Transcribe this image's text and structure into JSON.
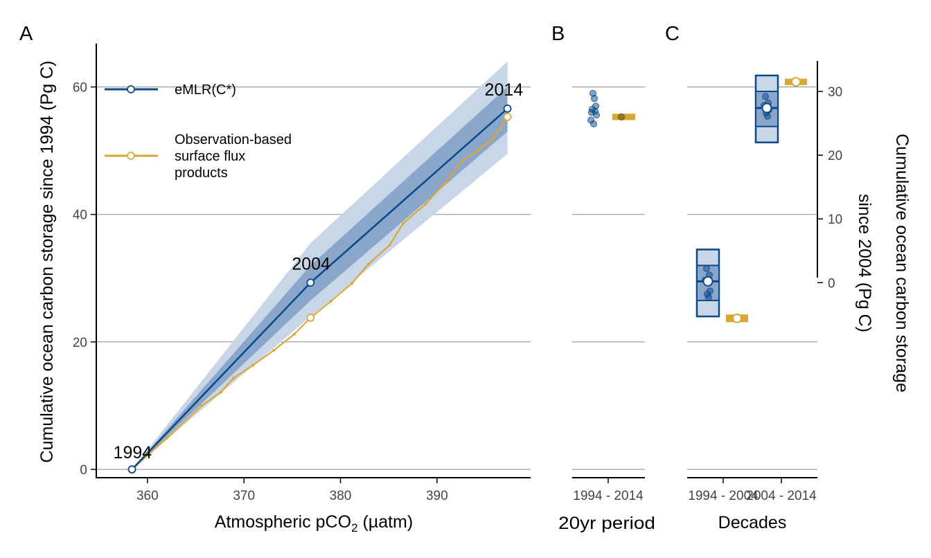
{
  "colors": {
    "emlr": "#0b4a8a",
    "obs": "#d9a734",
    "band_outer": "#c8d6e7",
    "band_inner": "#8aa7cb",
    "box_fill": "#c8d6e7",
    "box_inner": "#8aa7cb"
  },
  "chart_data": [
    {
      "panel": "A",
      "type": "line",
      "xlabel": "Atmospheric pCO",
      "xlabel_sub": "2",
      "xlabel_unit": " (µatm)",
      "ylabel": "Cumulative ocean carbon storage since 1994 (Pg C)",
      "xlim": [
        354.7,
        399.7
      ],
      "ylim": [
        -1.3,
        66.8
      ],
      "xticks": [
        360,
        370,
        380,
        390
      ],
      "yticks": [
        0,
        20,
        40,
        60
      ],
      "grid": "horizontal",
      "legend_placement": "top-left",
      "series": [
        {
          "name": "eMLR(C*)",
          "x": [
            358.4,
            376.9,
            397.3
          ],
          "y": [
            0,
            29.3,
            56.6
          ],
          "year_labels": [
            "1994",
            "2004",
            "2014"
          ]
        },
        {
          "name": "Observation-based surface flux products",
          "x": [
            358.4,
            362.0,
            365.6,
            367.6,
            368.9,
            370.9,
            373.1,
            375.2,
            376.9,
            379.0,
            381.2,
            382.9,
            385.1,
            386.5,
            388.8,
            390.8,
            392.6,
            394.0,
            395.8,
            397.3
          ],
          "y": [
            0,
            4.9,
            10.0,
            12.1,
            14.3,
            16.3,
            18.7,
            21.2,
            23.8,
            26.4,
            29.2,
            32.2,
            35.2,
            38.6,
            41.6,
            44.9,
            48.4,
            49.8,
            51.9,
            55.3
          ]
        }
      ],
      "uncertainty_outer": {
        "x": [
          358.4,
          376.9,
          397.3
        ],
        "upper": [
          0,
          35.5,
          64.0
        ],
        "lower": [
          0,
          24.0,
          49.5
        ]
      },
      "uncertainty_inner": {
        "x": [
          358.4,
          376.9,
          397.3
        ],
        "upper": [
          0,
          32.0,
          60.0
        ],
        "lower": [
          0,
          26.5,
          53.0
        ]
      }
    },
    {
      "panel": "B",
      "type": "scatter",
      "xlabel": "20yr period",
      "categories": [
        "1994 - 2014"
      ],
      "ylim": [
        -1.3,
        66.8
      ],
      "emlr_points": [
        59.0,
        58.2,
        57.0,
        56.5,
        56.2,
        56.0,
        55.6,
        54.8,
        54.2
      ],
      "obs_value": 55.3,
      "obs_range": [
        54.8,
        55.8
      ]
    },
    {
      "panel": "C",
      "type": "box",
      "xlabel": "Decades",
      "categories": [
        "1994 - 2004",
        "2004 - 2014"
      ],
      "ylim": [
        -1.3,
        66.8
      ],
      "y2label_line1": "Cumulative ocean carbon storage",
      "y2label_line2": "since 2004 (Pg C)",
      "y2ticks": [
        0,
        10,
        20,
        30
      ],
      "decades": [
        {
          "category": "1994 - 2004",
          "box_outer": [
            24.0,
            34.5
          ],
          "box_inner": [
            26.5,
            32.0
          ],
          "mean": 29.5,
          "points": [
            31.5,
            30.5,
            29.7,
            28.0,
            27.5,
            27.0
          ],
          "obs_value": 23.7,
          "obs_range": [
            23.1,
            24.3
          ]
        },
        {
          "category": "2004 - 2014",
          "box_outer": [
            22.0,
            32.5
          ],
          "box_inner": [
            24.5,
            30.0
          ],
          "mean": 27.4,
          "points": [
            29.2,
            28.2,
            27.8,
            27.1,
            26.6,
            26.1
          ],
          "obs_value": 31.5,
          "obs_range": [
            31.0,
            32.0
          ]
        }
      ]
    }
  ]
}
